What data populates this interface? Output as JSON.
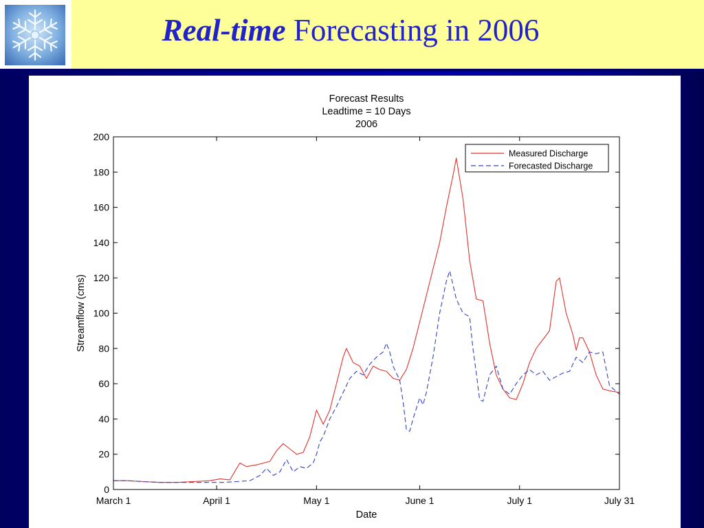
{
  "slide": {
    "title_em": "Real-time",
    "title_rest": " Forecasting in 2006"
  },
  "icons": {
    "logo": "snowflake-icon"
  },
  "colors": {
    "header_bg": "#ffff99",
    "title": "#2222cc",
    "measured": "#e0302a",
    "forecasted": "#3040c0"
  },
  "chart_data": {
    "type": "line",
    "title_lines": [
      "Forecast Results",
      "Leadtime = 10 Days",
      "2006"
    ],
    "xlabel": "Date",
    "ylabel": "Streamflow (cms)",
    "xlim": [
      "2006-03-01",
      "2006-07-31"
    ],
    "ylim": [
      0,
      200
    ],
    "yticks": [
      0,
      20,
      40,
      60,
      80,
      100,
      120,
      140,
      160,
      180,
      200
    ],
    "xticks": [
      {
        "date": "2006-03-01",
        "label": "March 1"
      },
      {
        "date": "2006-04-01",
        "label": "April 1"
      },
      {
        "date": "2006-05-01",
        "label": "May 1"
      },
      {
        "date": "2006-06-01",
        "label": "June 1"
      },
      {
        "date": "2006-07-01",
        "label": "July 1"
      },
      {
        "date": "2006-07-31",
        "label": "July 31"
      }
    ],
    "legend_position": "top-right",
    "series": [
      {
        "name": "Measured Discharge",
        "style": "solid",
        "points": [
          [
            "2006-03-01",
            5
          ],
          [
            "2006-03-05",
            5
          ],
          [
            "2006-03-10",
            4.5
          ],
          [
            "2006-03-15",
            4
          ],
          [
            "2006-03-20",
            4
          ],
          [
            "2006-03-25",
            4.5
          ],
          [
            "2006-03-30",
            5
          ],
          [
            "2006-04-02",
            6
          ],
          [
            "2006-04-05",
            5.5
          ],
          [
            "2006-04-07",
            12
          ],
          [
            "2006-04-08",
            15
          ],
          [
            "2006-04-10",
            13
          ],
          [
            "2006-04-13",
            14
          ],
          [
            "2006-04-17",
            16
          ],
          [
            "2006-04-19",
            22
          ],
          [
            "2006-04-21",
            26
          ],
          [
            "2006-04-23",
            23
          ],
          [
            "2006-04-25",
            20
          ],
          [
            "2006-04-27",
            21
          ],
          [
            "2006-04-29",
            30
          ],
          [
            "2006-05-01",
            45
          ],
          [
            "2006-05-03",
            37
          ],
          [
            "2006-05-05",
            45
          ],
          [
            "2006-05-07",
            60
          ],
          [
            "2006-05-09",
            75
          ],
          [
            "2006-05-10",
            80
          ],
          [
            "2006-05-12",
            72
          ],
          [
            "2006-05-14",
            70
          ],
          [
            "2006-05-16",
            63
          ],
          [
            "2006-05-18",
            70
          ],
          [
            "2006-05-20",
            68
          ],
          [
            "2006-05-22",
            67
          ],
          [
            "2006-05-24",
            63
          ],
          [
            "2006-05-26",
            62
          ],
          [
            "2006-05-28",
            68
          ],
          [
            "2006-05-30",
            80
          ],
          [
            "2006-06-01",
            95
          ],
          [
            "2006-06-03",
            110
          ],
          [
            "2006-06-05",
            125
          ],
          [
            "2006-06-07",
            140
          ],
          [
            "2006-06-09",
            160
          ],
          [
            "2006-06-11",
            178
          ],
          [
            "2006-06-12",
            188
          ],
          [
            "2006-06-14",
            165
          ],
          [
            "2006-06-16",
            130
          ],
          [
            "2006-06-18",
            108
          ],
          [
            "2006-06-20",
            107
          ],
          [
            "2006-06-22",
            83
          ],
          [
            "2006-06-24",
            65
          ],
          [
            "2006-06-26",
            57
          ],
          [
            "2006-06-28",
            52
          ],
          [
            "2006-06-30",
            51
          ],
          [
            "2006-07-02",
            60
          ],
          [
            "2006-07-04",
            72
          ],
          [
            "2006-07-06",
            80
          ],
          [
            "2006-07-08",
            85
          ],
          [
            "2006-07-10",
            90
          ],
          [
            "2006-07-12",
            118
          ],
          [
            "2006-07-13",
            120
          ],
          [
            "2006-07-15",
            100
          ],
          [
            "2006-07-17",
            88
          ],
          [
            "2006-07-18",
            79
          ],
          [
            "2006-07-19",
            86
          ],
          [
            "2006-07-20",
            86
          ],
          [
            "2006-07-22",
            78
          ],
          [
            "2006-07-24",
            65
          ],
          [
            "2006-07-26",
            57
          ],
          [
            "2006-07-28",
            56
          ],
          [
            "2006-07-31",
            55
          ]
        ]
      },
      {
        "name": "Forecasted Discharge",
        "style": "dashed",
        "points": [
          [
            "2006-03-01",
            5
          ],
          [
            "2006-03-05",
            5
          ],
          [
            "2006-03-10",
            4.5
          ],
          [
            "2006-03-15",
            4
          ],
          [
            "2006-03-20",
            4
          ],
          [
            "2006-03-25",
            4
          ],
          [
            "2006-03-30",
            4
          ],
          [
            "2006-04-03",
            4
          ],
          [
            "2006-04-07",
            4.5
          ],
          [
            "2006-04-11",
            5
          ],
          [
            "2006-04-14",
            8
          ],
          [
            "2006-04-16",
            12
          ],
          [
            "2006-04-18",
            8
          ],
          [
            "2006-04-20",
            10
          ],
          [
            "2006-04-22",
            17
          ],
          [
            "2006-04-24",
            10
          ],
          [
            "2006-04-26",
            13
          ],
          [
            "2006-04-28",
            12
          ],
          [
            "2006-04-30",
            15
          ],
          [
            "2006-05-01",
            20
          ],
          [
            "2006-05-02",
            27
          ],
          [
            "2006-05-03",
            30
          ],
          [
            "2006-05-05",
            40
          ],
          [
            "2006-05-07",
            47
          ],
          [
            "2006-05-09",
            55
          ],
          [
            "2006-05-11",
            63
          ],
          [
            "2006-05-13",
            67
          ],
          [
            "2006-05-15",
            65
          ],
          [
            "2006-05-17",
            71
          ],
          [
            "2006-05-19",
            75
          ],
          [
            "2006-05-21",
            78
          ],
          [
            "2006-05-22",
            83
          ],
          [
            "2006-05-23",
            78
          ],
          [
            "2006-05-24",
            70
          ],
          [
            "2006-05-26",
            62
          ],
          [
            "2006-05-27",
            50
          ],
          [
            "2006-05-28",
            34
          ],
          [
            "2006-05-29",
            33
          ],
          [
            "2006-05-30",
            40
          ],
          [
            "2006-06-01",
            52
          ],
          [
            "2006-06-02",
            48
          ],
          [
            "2006-06-03",
            55
          ],
          [
            "2006-06-05",
            75
          ],
          [
            "2006-06-07",
            100
          ],
          [
            "2006-06-09",
            118
          ],
          [
            "2006-06-10",
            124
          ],
          [
            "2006-06-12",
            108
          ],
          [
            "2006-06-14",
            100
          ],
          [
            "2006-06-16",
            98
          ],
          [
            "2006-06-17",
            80
          ],
          [
            "2006-06-18",
            66
          ],
          [
            "2006-06-19",
            51
          ],
          [
            "2006-06-20",
            50
          ],
          [
            "2006-06-22",
            65
          ],
          [
            "2006-06-24",
            70
          ],
          [
            "2006-06-26",
            57
          ],
          [
            "2006-06-28",
            54
          ],
          [
            "2006-06-30",
            60
          ],
          [
            "2006-07-02",
            65
          ],
          [
            "2006-07-04",
            68
          ],
          [
            "2006-07-06",
            65
          ],
          [
            "2006-07-08",
            67
          ],
          [
            "2006-07-10",
            62
          ],
          [
            "2006-07-12",
            64
          ],
          [
            "2006-07-14",
            66
          ],
          [
            "2006-07-16",
            67
          ],
          [
            "2006-07-18",
            75
          ],
          [
            "2006-07-20",
            72
          ],
          [
            "2006-07-22",
            78
          ],
          [
            "2006-07-24",
            77
          ],
          [
            "2006-07-26",
            78
          ],
          [
            "2006-07-28",
            59
          ],
          [
            "2006-07-31",
            54
          ]
        ]
      }
    ]
  }
}
